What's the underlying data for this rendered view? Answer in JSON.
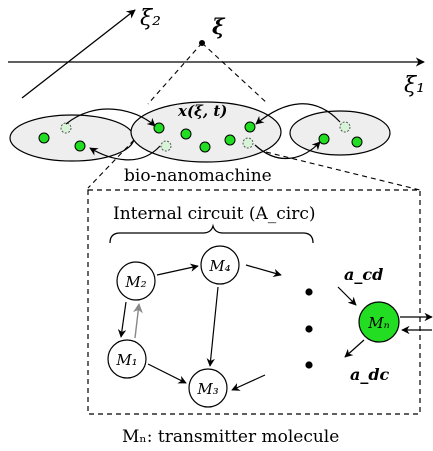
{
  "axes": {
    "xi2": "ξ₂",
    "xi": "ξ",
    "xi1": "ξ₁"
  },
  "cells": {
    "concentration_label": "x(ξ, t)",
    "caption": "bio-nanomachine"
  },
  "circuit": {
    "title": "Internal circuit (A_circ)",
    "nodes": [
      "M₂",
      "M₄",
      "M₁",
      "M₃",
      "Mₙ"
    ],
    "a_cd": "a_cd",
    "a_dc": "a_dc"
  },
  "footer": {
    "caption": "Mₙ: transmitter molecule"
  },
  "colors": {
    "molecule_fill": "#22dd22",
    "cell_fill": "#eeeeee",
    "stroke": "#000000"
  }
}
